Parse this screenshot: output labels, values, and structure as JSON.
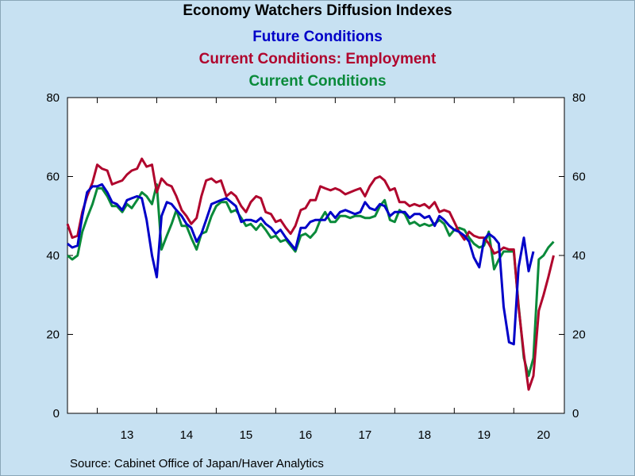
{
  "chart_data": {
    "type": "line",
    "title": "Economy Watchers Diffusion Indexes",
    "source": "Source:  Cabinet Office of Japan/Haver Analytics",
    "ylim": [
      0,
      80
    ],
    "yticks": [
      "0",
      "20",
      "40",
      "60",
      "80"
    ],
    "xlim": [
      2012.5,
      2020.85
    ],
    "xlabels": [
      {
        "label": "13",
        "x": 2013.5
      },
      {
        "label": "14",
        "x": 2014.5
      },
      {
        "label": "15",
        "x": 2015.5
      },
      {
        "label": "16",
        "x": 2016.5
      },
      {
        "label": "17",
        "x": 2017.5
      },
      {
        "label": "18",
        "x": 2018.5
      },
      {
        "label": "19",
        "x": 2019.5
      },
      {
        "label": "20",
        "x": 2020.5
      }
    ],
    "xticks": [
      2013,
      2014,
      2015,
      2016,
      2017,
      2018,
      2019,
      2020
    ],
    "grid": false,
    "series": [
      {
        "name": "Current Conditions",
        "color": "#0a8a3a",
        "points": [
          [
            2012.5,
            40
          ],
          [
            2012.58,
            39
          ],
          [
            2012.67,
            40
          ],
          [
            2012.75,
            46
          ],
          [
            2012.83,
            49.5
          ],
          [
            2012.92,
            53
          ],
          [
            2013.0,
            57
          ],
          [
            2013.08,
            57
          ],
          [
            2013.17,
            55
          ],
          [
            2013.25,
            52.5
          ],
          [
            2013.33,
            52.5
          ],
          [
            2013.42,
            51
          ],
          [
            2013.5,
            53
          ],
          [
            2013.58,
            52
          ],
          [
            2013.67,
            54
          ],
          [
            2013.75,
            56
          ],
          [
            2013.83,
            55
          ],
          [
            2013.92,
            53
          ],
          [
            2014.0,
            58
          ],
          [
            2014.08,
            41.5
          ],
          [
            2014.17,
            45
          ],
          [
            2014.25,
            48
          ],
          [
            2014.33,
            51.5
          ],
          [
            2014.42,
            47.5
          ],
          [
            2014.5,
            47.5
          ],
          [
            2014.58,
            44.5
          ],
          [
            2014.67,
            41.5
          ],
          [
            2014.75,
            45.5
          ],
          [
            2014.83,
            46
          ],
          [
            2014.92,
            50
          ],
          [
            2015.0,
            52.5
          ],
          [
            2015.08,
            53.5
          ],
          [
            2015.17,
            53.5
          ],
          [
            2015.25,
            51
          ],
          [
            2015.33,
            51.5
          ],
          [
            2015.42,
            49.5
          ],
          [
            2015.5,
            47.5
          ],
          [
            2015.58,
            48
          ],
          [
            2015.67,
            46.5
          ],
          [
            2015.75,
            48
          ],
          [
            2015.83,
            46.5
          ],
          [
            2015.92,
            44.5
          ],
          [
            2016.0,
            45
          ],
          [
            2016.08,
            43.5
          ],
          [
            2016.17,
            44
          ],
          [
            2016.25,
            42.5
          ],
          [
            2016.33,
            41
          ],
          [
            2016.42,
            45
          ],
          [
            2016.5,
            45.5
          ],
          [
            2016.58,
            44.5
          ],
          [
            2016.67,
            46
          ],
          [
            2016.75,
            49
          ],
          [
            2016.83,
            51
          ],
          [
            2016.92,
            48.5
          ],
          [
            2017.0,
            48.5
          ],
          [
            2017.08,
            50
          ],
          [
            2017.17,
            50
          ],
          [
            2017.25,
            49.5
          ],
          [
            2017.33,
            50
          ],
          [
            2017.42,
            50
          ],
          [
            2017.5,
            49.5
          ],
          [
            2017.58,
            49.5
          ],
          [
            2017.67,
            50
          ],
          [
            2017.75,
            52.5
          ],
          [
            2017.83,
            54
          ],
          [
            2017.92,
            49
          ],
          [
            2018.0,
            48.5
          ],
          [
            2018.08,
            51.5
          ],
          [
            2018.17,
            50.5
          ],
          [
            2018.25,
            48
          ],
          [
            2018.33,
            48.5
          ],
          [
            2018.42,
            47.5
          ],
          [
            2018.5,
            48
          ],
          [
            2018.58,
            47.5
          ],
          [
            2018.67,
            48
          ],
          [
            2018.75,
            49
          ],
          [
            2018.83,
            48
          ],
          [
            2018.92,
            45
          ],
          [
            2019.0,
            46.5
          ],
          [
            2019.08,
            47
          ],
          [
            2019.17,
            46.5
          ],
          [
            2019.25,
            44.5
          ],
          [
            2019.33,
            43
          ],
          [
            2019.42,
            42
          ],
          [
            2019.5,
            42.5
          ],
          [
            2019.58,
            46
          ],
          [
            2019.67,
            36.5
          ],
          [
            2019.75,
            39
          ],
          [
            2019.83,
            41
          ],
          [
            2019.92,
            41
          ],
          [
            2020.0,
            41
          ],
          [
            2020.08,
            27.5
          ],
          [
            2020.17,
            14
          ],
          [
            2020.25,
            9.5
          ],
          [
            2020.33,
            14
          ],
          [
            2020.42,
            39
          ],
          [
            2020.5,
            40
          ],
          [
            2020.58,
            42
          ],
          [
            2020.67,
            43.5
          ]
        ]
      },
      {
        "name": "Current Conditions: Employment",
        "color": "#b0052d",
        "points": [
          [
            2012.5,
            48
          ],
          [
            2012.58,
            44.5
          ],
          [
            2012.67,
            45
          ],
          [
            2012.75,
            51
          ],
          [
            2012.83,
            55
          ],
          [
            2012.92,
            58.5
          ],
          [
            2013.0,
            63
          ],
          [
            2013.08,
            62
          ],
          [
            2013.17,
            61.5
          ],
          [
            2013.25,
            58
          ],
          [
            2013.33,
            58.5
          ],
          [
            2013.42,
            59
          ],
          [
            2013.5,
            60.5
          ],
          [
            2013.58,
            61.5
          ],
          [
            2013.67,
            62
          ],
          [
            2013.75,
            64.5
          ],
          [
            2013.83,
            62.5
          ],
          [
            2013.92,
            63
          ],
          [
            2014.0,
            56
          ],
          [
            2014.08,
            59.5
          ],
          [
            2014.17,
            58
          ],
          [
            2014.25,
            57.5
          ],
          [
            2014.33,
            55
          ],
          [
            2014.42,
            51.5
          ],
          [
            2014.5,
            50
          ],
          [
            2014.58,
            48
          ],
          [
            2014.67,
            49.5
          ],
          [
            2014.75,
            55
          ],
          [
            2014.83,
            59
          ],
          [
            2014.92,
            59.5
          ],
          [
            2015.0,
            58.5
          ],
          [
            2015.08,
            59
          ],
          [
            2015.17,
            55
          ],
          [
            2015.25,
            56
          ],
          [
            2015.33,
            55
          ],
          [
            2015.42,
            52.5
          ],
          [
            2015.5,
            51
          ],
          [
            2015.58,
            53.5
          ],
          [
            2015.67,
            55
          ],
          [
            2015.75,
            54.5
          ],
          [
            2015.83,
            51
          ],
          [
            2015.92,
            50.5
          ],
          [
            2016.0,
            48.5
          ],
          [
            2016.08,
            49
          ],
          [
            2016.17,
            47
          ],
          [
            2016.25,
            45.5
          ],
          [
            2016.33,
            47.5
          ],
          [
            2016.42,
            51.5
          ],
          [
            2016.5,
            52
          ],
          [
            2016.58,
            54
          ],
          [
            2016.67,
            54
          ],
          [
            2016.75,
            57.5
          ],
          [
            2016.83,
            57
          ],
          [
            2016.92,
            56.5
          ],
          [
            2017.0,
            57
          ],
          [
            2017.08,
            56.5
          ],
          [
            2017.17,
            55.5
          ],
          [
            2017.25,
            56
          ],
          [
            2017.33,
            56.5
          ],
          [
            2017.42,
            57
          ],
          [
            2017.5,
            55
          ],
          [
            2017.58,
            57.5
          ],
          [
            2017.67,
            59.5
          ],
          [
            2017.75,
            60
          ],
          [
            2017.83,
            59
          ],
          [
            2017.92,
            56.5
          ],
          [
            2018.0,
            57
          ],
          [
            2018.08,
            53.5
          ],
          [
            2018.17,
            53.5
          ],
          [
            2018.25,
            52.5
          ],
          [
            2018.33,
            53
          ],
          [
            2018.42,
            52.5
          ],
          [
            2018.5,
            53
          ],
          [
            2018.58,
            52
          ],
          [
            2018.67,
            53.5
          ],
          [
            2018.75,
            51
          ],
          [
            2018.83,
            51.5
          ],
          [
            2018.92,
            51
          ],
          [
            2019.0,
            48.5
          ],
          [
            2019.08,
            46
          ],
          [
            2019.17,
            44
          ],
          [
            2019.25,
            46
          ],
          [
            2019.33,
            45
          ],
          [
            2019.42,
            44.5
          ],
          [
            2019.5,
            44.5
          ],
          [
            2019.58,
            43
          ],
          [
            2019.67,
            40.5
          ],
          [
            2019.75,
            41
          ],
          [
            2019.83,
            42
          ],
          [
            2019.92,
            41.5
          ],
          [
            2020.0,
            41.5
          ],
          [
            2020.08,
            27
          ],
          [
            2020.17,
            15
          ],
          [
            2020.25,
            6
          ],
          [
            2020.33,
            9.5
          ],
          [
            2020.42,
            26
          ],
          [
            2020.5,
            30
          ],
          [
            2020.58,
            34.5
          ],
          [
            2020.67,
            40
          ]
        ]
      },
      {
        "name": "Future Conditions",
        "color": "#0000c8",
        "points": [
          [
            2012.5,
            43
          ],
          [
            2012.58,
            42
          ],
          [
            2012.67,
            42.5
          ],
          [
            2012.75,
            50
          ],
          [
            2012.83,
            56
          ],
          [
            2012.92,
            57.5
          ],
          [
            2013.0,
            57.5
          ],
          [
            2013.08,
            58
          ],
          [
            2013.17,
            56
          ],
          [
            2013.25,
            53.5
          ],
          [
            2013.33,
            53
          ],
          [
            2013.42,
            51.5
          ],
          [
            2013.5,
            54
          ],
          [
            2013.58,
            54.5
          ],
          [
            2013.67,
            55
          ],
          [
            2013.75,
            54.5
          ],
          [
            2013.83,
            49
          ],
          [
            2013.92,
            40
          ],
          [
            2014.0,
            34.5
          ],
          [
            2014.08,
            50
          ],
          [
            2014.17,
            53.5
          ],
          [
            2014.25,
            53
          ],
          [
            2014.33,
            51.5
          ],
          [
            2014.42,
            50
          ],
          [
            2014.5,
            48
          ],
          [
            2014.58,
            47
          ],
          [
            2014.67,
            43.5
          ],
          [
            2014.75,
            45.5
          ],
          [
            2014.83,
            49
          ],
          [
            2014.92,
            53
          ],
          [
            2015.0,
            53.5
          ],
          [
            2015.08,
            54
          ],
          [
            2015.17,
            54.5
          ],
          [
            2015.25,
            53.5
          ],
          [
            2015.33,
            52.5
          ],
          [
            2015.42,
            48.5
          ],
          [
            2015.5,
            49
          ],
          [
            2015.58,
            49
          ],
          [
            2015.67,
            48.5
          ],
          [
            2015.75,
            49.5
          ],
          [
            2015.83,
            48
          ],
          [
            2015.92,
            47
          ],
          [
            2016.0,
            45.5
          ],
          [
            2016.08,
            46.5
          ],
          [
            2016.17,
            44.5
          ],
          [
            2016.25,
            43
          ],
          [
            2016.33,
            41.5
          ],
          [
            2016.42,
            47
          ],
          [
            2016.5,
            47
          ],
          [
            2016.58,
            48.5
          ],
          [
            2016.67,
            49
          ],
          [
            2016.75,
            49
          ],
          [
            2016.83,
            49
          ],
          [
            2016.92,
            51
          ],
          [
            2017.0,
            49.5
          ],
          [
            2017.08,
            51
          ],
          [
            2017.17,
            51.5
          ],
          [
            2017.25,
            51
          ],
          [
            2017.33,
            50.5
          ],
          [
            2017.42,
            51
          ],
          [
            2017.5,
            53.5
          ],
          [
            2017.58,
            52
          ],
          [
            2017.67,
            51.5
          ],
          [
            2017.75,
            53
          ],
          [
            2017.83,
            52.5
          ],
          [
            2017.92,
            50
          ],
          [
            2018.0,
            51
          ],
          [
            2018.08,
            51
          ],
          [
            2018.17,
            51
          ],
          [
            2018.25,
            49.5
          ],
          [
            2018.33,
            50.5
          ],
          [
            2018.42,
            50.5
          ],
          [
            2018.5,
            49.5
          ],
          [
            2018.58,
            50
          ],
          [
            2018.67,
            47.5
          ],
          [
            2018.75,
            50
          ],
          [
            2018.83,
            49
          ],
          [
            2018.92,
            47.5
          ],
          [
            2019.0,
            46.5
          ],
          [
            2019.08,
            46
          ],
          [
            2019.17,
            45
          ],
          [
            2019.25,
            43.5
          ],
          [
            2019.33,
            39.5
          ],
          [
            2019.42,
            37
          ],
          [
            2019.5,
            44
          ],
          [
            2019.58,
            45.5
          ],
          [
            2019.67,
            44.5
          ],
          [
            2019.75,
            43
          ],
          [
            2019.83,
            27
          ],
          [
            2019.92,
            18
          ],
          [
            2020.0,
            17.5
          ],
          [
            2020.08,
            37
          ],
          [
            2020.17,
            44.5
          ],
          [
            2020.25,
            36
          ],
          [
            2020.33,
            41
          ]
        ]
      }
    ]
  }
}
